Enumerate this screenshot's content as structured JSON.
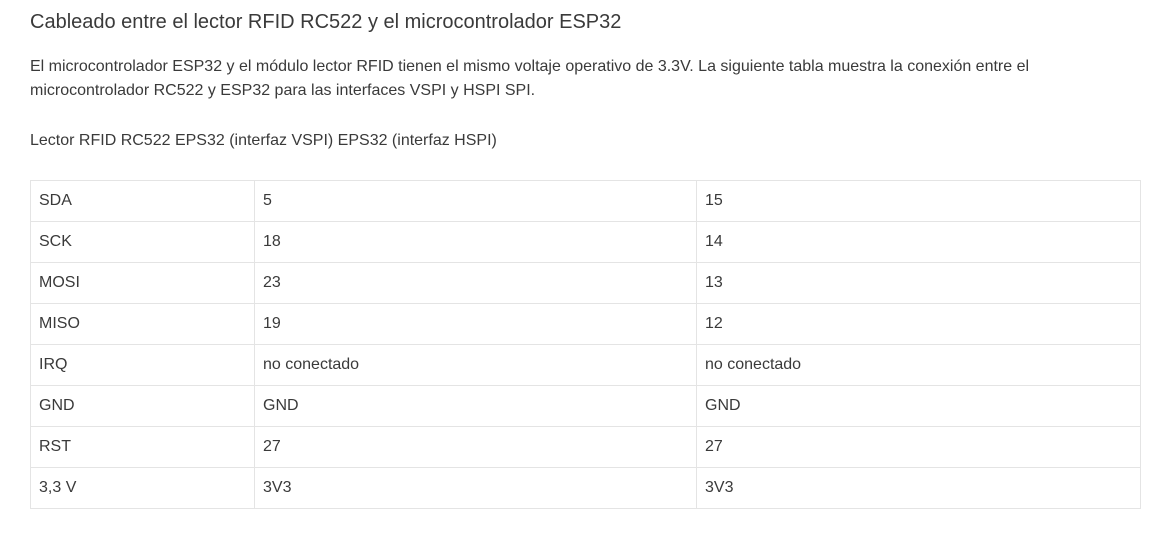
{
  "heading": "Cableado entre el lector RFID RC522 y el microcontrolador ESP32",
  "intro": "El microcontrolador ESP32 y el módulo lector RFID tienen el mismo voltaje operativo de 3.3V. La siguiente tabla muestra la conexión entre el microcontrolador RC522 y ESP32 para las interfaces VSPI y HSPI SPI.",
  "table_caption": "Lector RFID RC522 EPS32 (interfaz VSPI) EPS32 (interfaz HSPI)",
  "rows": [
    {
      "pin": "SDA",
      "vspi": "5",
      "hspi": "15"
    },
    {
      "pin": "SCK",
      "vspi": "18",
      "hspi": "14"
    },
    {
      "pin": "MOSI",
      "vspi": "23",
      "hspi": "13"
    },
    {
      "pin": "MISO",
      "vspi": "19",
      "hspi": "12"
    },
    {
      "pin": "IRQ",
      "vspi": "no conectado",
      "hspi": "no conectado"
    },
    {
      "pin": "GND",
      "vspi": "GND",
      "hspi": "GND"
    },
    {
      "pin": "RST",
      "vspi": "27",
      "hspi": "27"
    },
    {
      "pin": "3,3 V",
      "vspi": "3V3",
      "hspi": "3V3"
    }
  ]
}
